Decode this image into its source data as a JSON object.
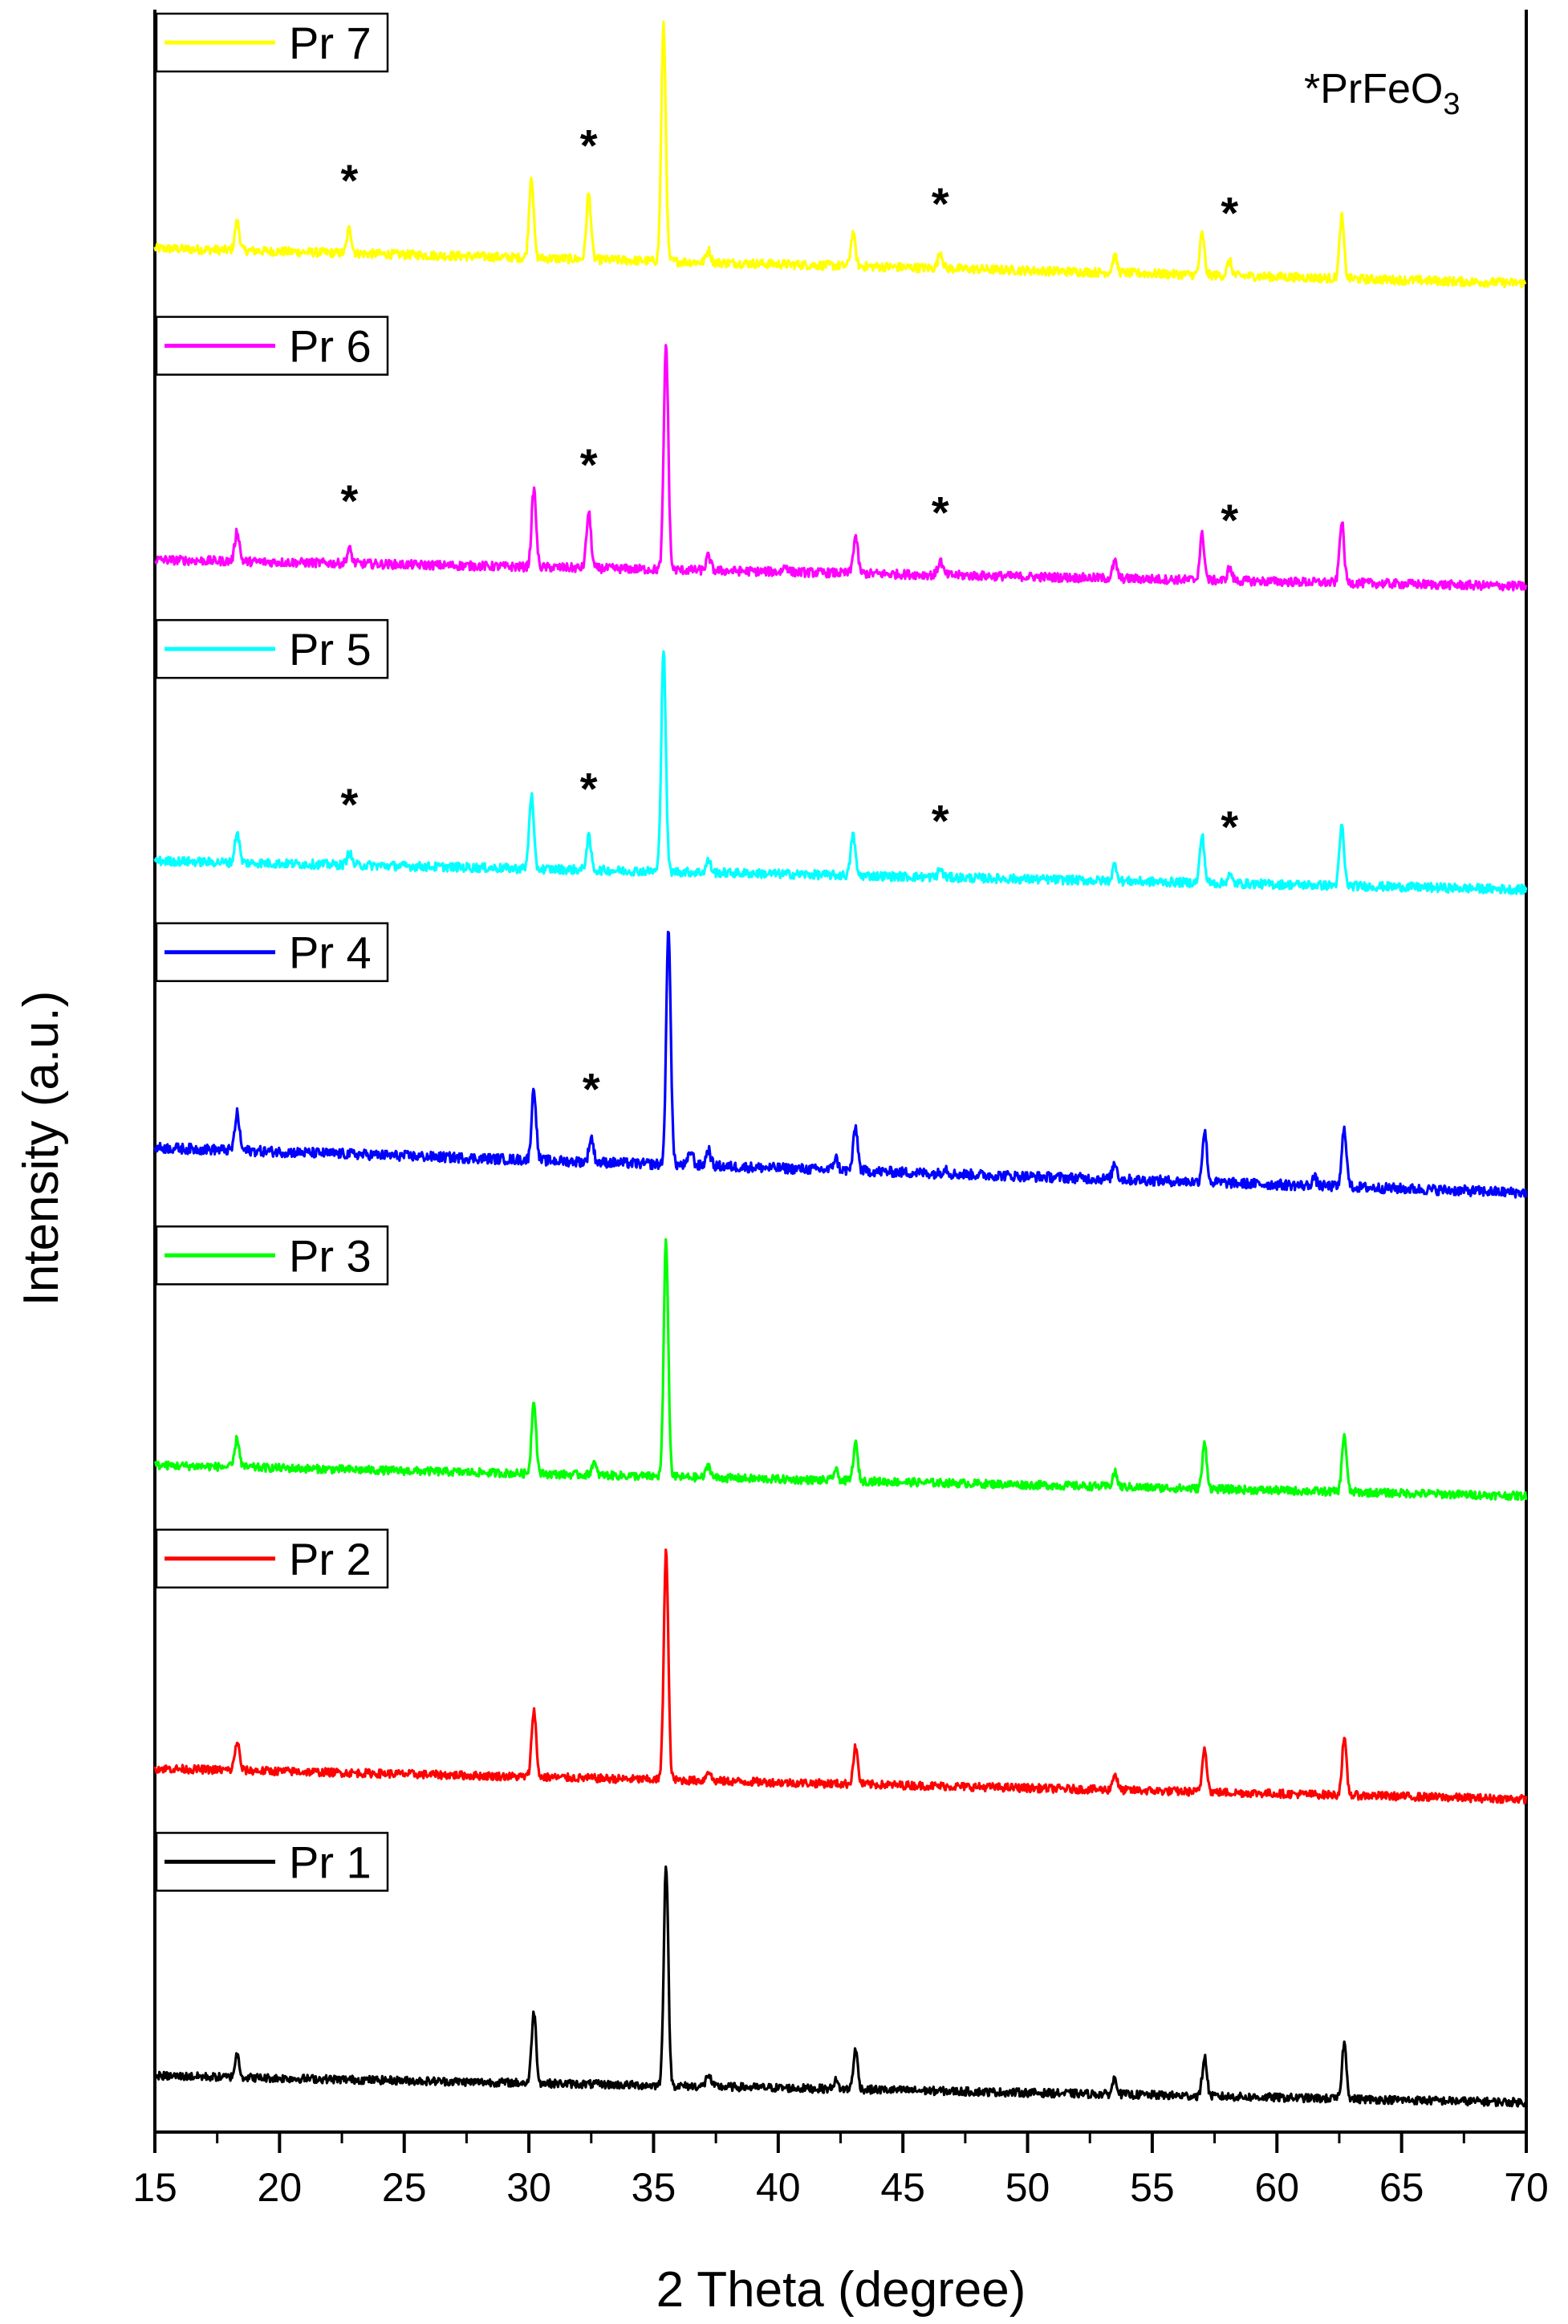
{
  "chart_data": {
    "type": "line",
    "xlabel": "2 Theta (degree)",
    "ylabel": "Intensity (a.u.)",
    "xlim": [
      15,
      70
    ],
    "x_ticks": [
      "15",
      "20",
      "25",
      "30",
      "35",
      "40",
      "45",
      "50",
      "55",
      "60",
      "65",
      "70"
    ],
    "y_ticks_shown": false,
    "stacked_offset": true,
    "legend_placement": "left of each trace",
    "note": {
      "prefix": "*PrFeO",
      "subscript": "3"
    },
    "marker_symbol": "*",
    "series": [
      {
        "name": "Pr 7",
        "color": "#ffff00",
        "baseline": 0.9,
        "drift": 1.7,
        "noise": 0.22,
        "height": 14.8,
        "peaks": [
          [
            18.3,
            1.4
          ],
          [
            22.8,
            1.2
          ],
          [
            30.1,
            4.0
          ],
          [
            32.4,
            3.2
          ],
          [
            35.4,
            11.5
          ],
          [
            37.2,
            0.6
          ],
          [
            43.0,
            1.6
          ],
          [
            46.5,
            0.8
          ],
          [
            53.5,
            0.8
          ],
          [
            57.0,
            2.0
          ],
          [
            58.1,
            0.7
          ],
          [
            62.6,
            3.0
          ]
        ],
        "markers": [
          22.8,
          32.4,
          46.5,
          58.1
        ]
      },
      {
        "name": "Pr 6",
        "color": "#ff00ff",
        "baseline": 0.9,
        "drift": 1.3,
        "noise": 0.22,
        "height": 14.8,
        "peaks": [
          [
            18.3,
            1.5
          ],
          [
            22.8,
            0.7
          ],
          [
            30.2,
            3.8
          ],
          [
            32.4,
            2.7
          ],
          [
            35.5,
            11.0
          ],
          [
            37.2,
            0.7
          ],
          [
            40.3,
            0.3
          ],
          [
            43.1,
            1.8
          ],
          [
            46.5,
            0.7
          ],
          [
            53.5,
            0.8
          ],
          [
            57.0,
            2.2
          ],
          [
            58.1,
            0.6
          ],
          [
            62.6,
            3.0
          ]
        ],
        "markers": [
          22.8,
          32.4,
          46.5,
          58.1
        ]
      },
      {
        "name": "Pr 5",
        "color": "#00ffff",
        "baseline": 0.9,
        "drift": 1.4,
        "noise": 0.22,
        "height": 14.8,
        "peaks": [
          [
            18.3,
            1.5
          ],
          [
            22.8,
            0.6
          ],
          [
            30.1,
            3.6
          ],
          [
            32.4,
            1.6
          ],
          [
            35.4,
            10.9
          ],
          [
            37.2,
            0.6
          ],
          [
            43.0,
            2.0
          ],
          [
            46.5,
            0.4
          ],
          [
            53.5,
            0.8
          ],
          [
            57.0,
            2.3
          ],
          [
            58.1,
            0.4
          ],
          [
            62.6,
            2.9
          ]
        ],
        "markers": [
          22.8,
          32.4,
          46.5,
          58.1
        ]
      },
      {
        "name": "Pr 4",
        "color": "#0000ff",
        "baseline": 0.9,
        "drift": 2.2,
        "noise": 0.25,
        "height": 14.8,
        "peaks": [
          [
            18.3,
            1.8
          ],
          [
            30.2,
            3.5
          ],
          [
            32.5,
            1.2
          ],
          [
            35.6,
            11.5
          ],
          [
            36.5,
            0.7
          ],
          [
            37.2,
            0.8
          ],
          [
            42.3,
            0.6
          ],
          [
            43.1,
            2.1
          ],
          [
            46.7,
            0.3
          ],
          [
            53.5,
            0.8
          ],
          [
            57.1,
            2.5
          ],
          [
            61.5,
            0.4
          ],
          [
            62.7,
            2.9
          ]
        ],
        "markers": [
          32.5
        ]
      },
      {
        "name": "Pr 3",
        "color": "#00ff00",
        "baseline": 0.9,
        "drift": 1.5,
        "noise": 0.2,
        "height": 14.8,
        "peaks": [
          [
            18.3,
            1.4
          ],
          [
            30.2,
            3.6
          ],
          [
            32.6,
            0.6
          ],
          [
            35.5,
            11.5
          ],
          [
            37.2,
            0.6
          ],
          [
            42.3,
            0.5
          ],
          [
            43.1,
            1.8
          ],
          [
            53.5,
            0.7
          ],
          [
            57.1,
            2.2
          ],
          [
            62.7,
            2.8
          ]
        ],
        "markers": []
      },
      {
        "name": "Pr 2",
        "color": "#ff0000",
        "baseline": 0.9,
        "drift": 1.5,
        "noise": 0.2,
        "height": 14.8,
        "peaks": [
          [
            18.3,
            1.4
          ],
          [
            30.2,
            3.3
          ],
          [
            35.5,
            11.2
          ],
          [
            37.2,
            0.5
          ],
          [
            43.1,
            1.8
          ],
          [
            53.5,
            0.8
          ],
          [
            57.1,
            2.2
          ],
          [
            62.7,
            2.7
          ]
        ],
        "markers": []
      },
      {
        "name": "Pr 1",
        "color": "#000000",
        "baseline": 0.9,
        "drift": 1.3,
        "noise": 0.2,
        "height": 14.8,
        "peaks": [
          [
            18.3,
            1.1
          ],
          [
            30.2,
            3.5
          ],
          [
            35.5,
            10.8
          ],
          [
            37.2,
            0.6
          ],
          [
            42.3,
            0.4
          ],
          [
            43.1,
            1.9
          ],
          [
            53.5,
            0.8
          ],
          [
            57.1,
            1.9
          ],
          [
            62.7,
            2.7
          ]
        ],
        "markers": []
      }
    ]
  }
}
